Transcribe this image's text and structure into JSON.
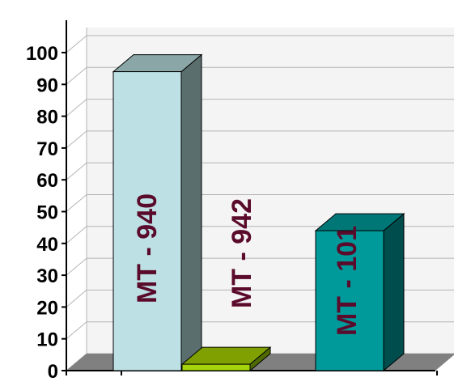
{
  "chart_data": {
    "type": "bar",
    "style": "3d-column",
    "categories": [
      "MT - 940",
      "MT - 942",
      "MT - 101"
    ],
    "values": [
      94,
      2,
      44
    ],
    "ylim": [
      0,
      100
    ],
    "yticks": [
      "0",
      "10",
      "20",
      "30",
      "40",
      "50",
      "60",
      "70",
      "80",
      "90",
      "100"
    ],
    "grid": true,
    "legend": "none",
    "colors": {
      "bars": [
        {
          "front": "#bde0e4",
          "side": "#5b6e6e",
          "top": "#8aa6a6"
        },
        {
          "front": "#a6d40a",
          "side": "#4f6b00",
          "top": "#7fa000"
        },
        {
          "front": "#009a9a",
          "side": "#004d4d",
          "top": "#007777"
        }
      ],
      "label": "#5a0a2a",
      "floor": "#808080",
      "wall": "#f4f4f4",
      "grid": "#b4b4b4",
      "axis": "#000000"
    }
  }
}
